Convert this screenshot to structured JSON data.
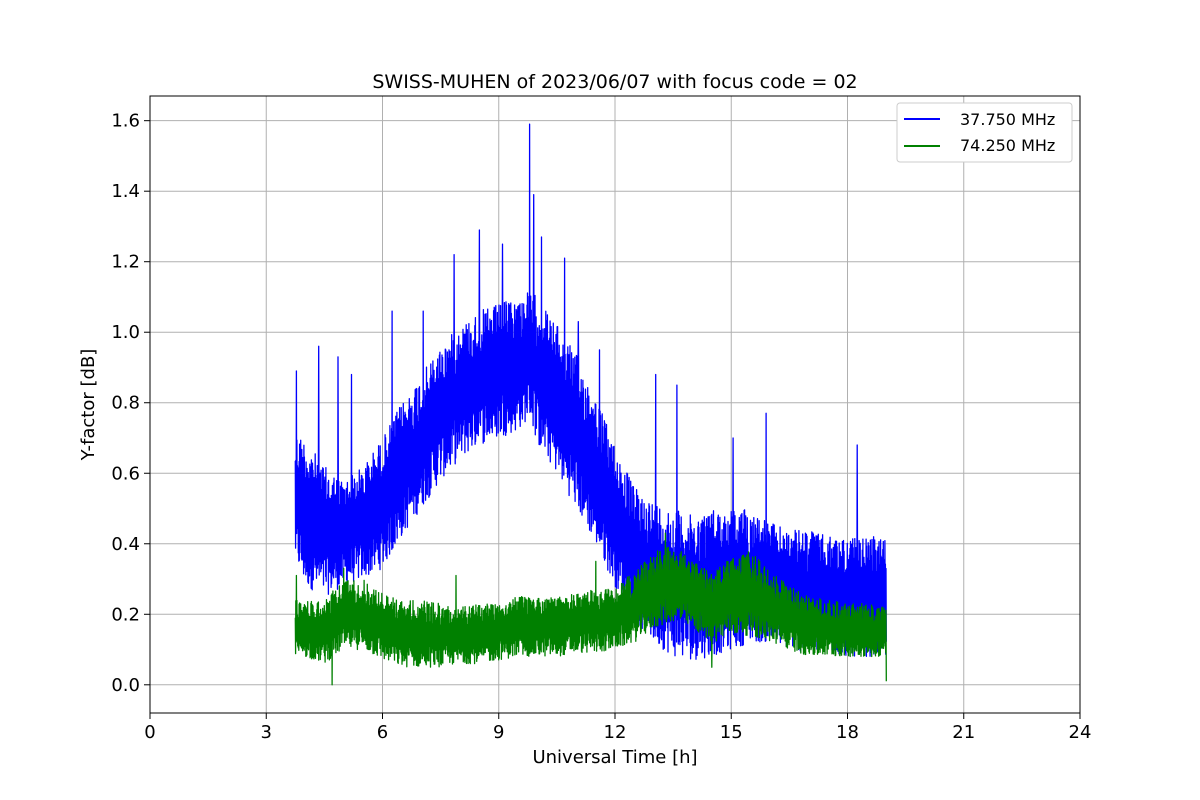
{
  "chart_data": {
    "type": "line",
    "title": "SWISS-MUHEN of 2023/06/07 with focus code = 02",
    "xlabel": "Universal Time [h]",
    "ylabel": "Y-factor [dB]",
    "xlim": [
      0,
      24
    ],
    "ylim": [
      -0.08,
      1.67
    ],
    "xticks": [
      0,
      3,
      6,
      9,
      12,
      15,
      18,
      21,
      24
    ],
    "yticks": [
      0.0,
      0.2,
      0.4,
      0.6,
      0.8,
      1.0,
      1.2,
      1.4,
      1.6
    ],
    "ytick_labels": [
      "0.0",
      "0.2",
      "0.4",
      "0.6",
      "0.8",
      "1.0",
      "1.2",
      "1.4",
      "1.6"
    ],
    "grid": true,
    "legend_position": "top-right",
    "series": [
      {
        "name": "37.750 MHz",
        "color": "#0000ff",
        "envelope": {
          "x": [
            3.75,
            4.0,
            4.5,
            5.0,
            5.5,
            6.0,
            6.5,
            7.0,
            7.5,
            8.0,
            8.5,
            9.0,
            9.5,
            9.8,
            10.0,
            10.5,
            11.0,
            11.5,
            12.0,
            12.5,
            13.0,
            13.5,
            14.0,
            14.5,
            15.0,
            15.5,
            16.0,
            16.5,
            17.0,
            17.5,
            18.0,
            18.5,
            19.0
          ],
          "upper": [
            0.72,
            0.7,
            0.62,
            0.58,
            0.62,
            0.7,
            0.8,
            0.88,
            0.96,
            1.02,
            1.06,
            1.08,
            1.1,
            1.12,
            1.1,
            1.02,
            0.94,
            0.82,
            0.68,
            0.56,
            0.52,
            0.5,
            0.48,
            0.5,
            0.5,
            0.5,
            0.46,
            0.44,
            0.44,
            0.42,
            0.42,
            0.42,
            0.42
          ],
          "lower": [
            0.35,
            0.28,
            0.25,
            0.28,
            0.3,
            0.33,
            0.42,
            0.5,
            0.58,
            0.64,
            0.68,
            0.7,
            0.72,
            0.76,
            0.68,
            0.6,
            0.5,
            0.4,
            0.28,
            0.18,
            0.12,
            0.08,
            0.07,
            0.08,
            0.1,
            0.12,
            0.12,
            0.1,
            0.09,
            0.09,
            0.08,
            0.08,
            0.08
          ]
        },
        "spikes": [
          {
            "x": 3.78,
            "y": 0.89
          },
          {
            "x": 4.35,
            "y": 0.96
          },
          {
            "x": 4.85,
            "y": 0.93
          },
          {
            "x": 5.2,
            "y": 0.88
          },
          {
            "x": 6.25,
            "y": 1.06
          },
          {
            "x": 7.05,
            "y": 1.06
          },
          {
            "x": 7.85,
            "y": 1.22
          },
          {
            "x": 8.5,
            "y": 1.29
          },
          {
            "x": 9.1,
            "y": 1.25
          },
          {
            "x": 9.8,
            "y": 1.59
          },
          {
            "x": 9.9,
            "y": 1.39
          },
          {
            "x": 10.1,
            "y": 1.27
          },
          {
            "x": 10.7,
            "y": 1.21
          },
          {
            "x": 11.05,
            "y": 1.03
          },
          {
            "x": 11.6,
            "y": 0.95
          },
          {
            "x": 13.05,
            "y": 0.88
          },
          {
            "x": 13.6,
            "y": 0.85
          },
          {
            "x": 15.05,
            "y": 0.7
          },
          {
            "x": 15.9,
            "y": 0.77
          },
          {
            "x": 18.25,
            "y": 0.68
          }
        ]
      },
      {
        "name": "74.250 MHz",
        "color": "#008000",
        "envelope": {
          "x": [
            3.75,
            4.0,
            4.5,
            5.0,
            5.5,
            6.0,
            6.5,
            7.0,
            7.5,
            8.0,
            8.5,
            9.0,
            9.5,
            10.0,
            10.5,
            11.0,
            11.5,
            12.0,
            12.5,
            13.0,
            13.5,
            14.0,
            14.5,
            15.0,
            15.5,
            16.0,
            16.5,
            17.0,
            17.5,
            18.0,
            18.5,
            19.0
          ],
          "upper": [
            0.24,
            0.24,
            0.24,
            0.3,
            0.3,
            0.26,
            0.24,
            0.24,
            0.23,
            0.22,
            0.23,
            0.24,
            0.25,
            0.25,
            0.25,
            0.26,
            0.27,
            0.28,
            0.32,
            0.38,
            0.4,
            0.35,
            0.32,
            0.36,
            0.38,
            0.32,
            0.28,
            0.25,
            0.24,
            0.23,
            0.23,
            0.22
          ],
          "lower": [
            0.08,
            0.08,
            0.06,
            0.1,
            0.1,
            0.07,
            0.05,
            0.05,
            0.05,
            0.06,
            0.06,
            0.07,
            0.08,
            0.08,
            0.08,
            0.09,
            0.09,
            0.1,
            0.12,
            0.16,
            0.18,
            0.16,
            0.12,
            0.14,
            0.14,
            0.12,
            0.1,
            0.08,
            0.08,
            0.08,
            0.08,
            0.08
          ]
        },
        "spikes": [
          {
            "x": 3.78,
            "y": 0.31
          },
          {
            "x": 5.0,
            "y": 0.33
          },
          {
            "x": 7.9,
            "y": 0.31
          },
          {
            "x": 11.5,
            "y": 0.35
          },
          {
            "x": 13.3,
            "y": 0.43
          },
          {
            "x": 4.7,
            "y": 0.0
          },
          {
            "x": 14.5,
            "y": 0.05
          },
          {
            "x": 19.0,
            "y": 0.01
          }
        ]
      }
    ]
  }
}
